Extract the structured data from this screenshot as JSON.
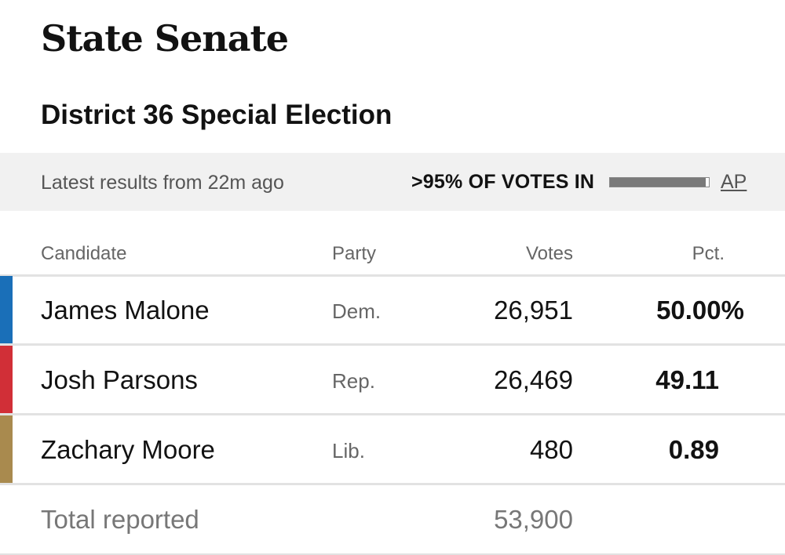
{
  "page_title": "State Senate",
  "race_title": "District 36 Special Election",
  "status": {
    "updated": "Latest results from 22m ago",
    "reporting": ">95% OF VOTES IN",
    "reporting_fraction": 0.97,
    "source": "AP"
  },
  "table": {
    "headers": {
      "candidate": "Candidate",
      "party": "Party",
      "votes": "Votes",
      "pct": "Pct."
    },
    "rows": [
      {
        "name": "James Malone",
        "party": "Dem.",
        "votes": "26,951",
        "pct": "50.00%",
        "color": "#1a6fb8"
      },
      {
        "name": "Josh Parsons",
        "party": "Rep.",
        "votes": "26,469",
        "pct": "49.11",
        "color": "#d12f37"
      },
      {
        "name": "Zachary Moore",
        "party": "Lib.",
        "votes": "480",
        "pct": "0.89",
        "color": "#a98a4e"
      }
    ],
    "total": {
      "label": "Total reported",
      "votes": "53,900"
    }
  }
}
